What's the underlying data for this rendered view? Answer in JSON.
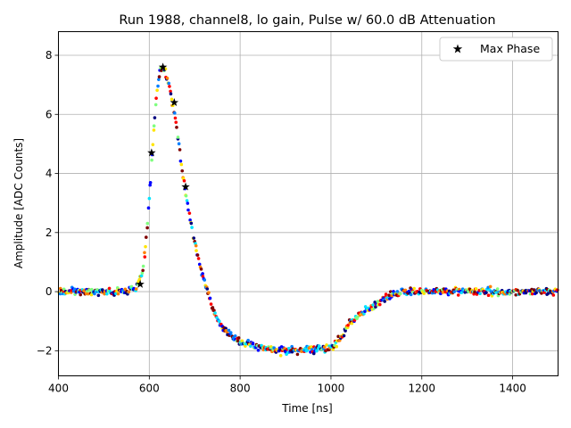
{
  "chart_data": {
    "type": "scatter",
    "title": "Run 1988, channel8, lo gain, Pulse w/ 60.0 dB Attenuation",
    "xlabel": "Time [ns]",
    "ylabel": "Amplitude [ADC Counts]",
    "xlim": [
      400,
      1500
    ],
    "ylim": [
      -2.85,
      8.8
    ],
    "xticks": [
      400,
      600,
      800,
      1000,
      1200,
      1400
    ],
    "yticks": [
      -2,
      0,
      2,
      4,
      6,
      8
    ],
    "xtick_labels": [
      "400",
      "600",
      "800",
      "1000",
      "1200",
      "1400"
    ],
    "ytick_labels": [
      "−2",
      "0",
      "2",
      "4",
      "6",
      "8"
    ],
    "grid": true,
    "legend": {
      "position": "top-right",
      "entries": [
        "Max Phase"
      ]
    },
    "colormap": [
      "#00007f",
      "#0000ff",
      "#007fff",
      "#00e5ff",
      "#7fff7f",
      "#ffe500",
      "#ff7f00",
      "#ff0000",
      "#7f0000"
    ],
    "pulse_waveform": {
      "description": "Many overlaid phase-shifted samples of the pulse shape; colour encodes phase",
      "samples": [
        [
          400,
          0.0
        ],
        [
          540,
          0.0
        ],
        [
          570,
          0.1
        ],
        [
          585,
          0.6
        ],
        [
          595,
          2.0
        ],
        [
          605,
          4.3
        ],
        [
          615,
          6.5
        ],
        [
          625,
          7.6
        ],
        [
          635,
          7.5
        ],
        [
          645,
          6.9
        ],
        [
          660,
          5.6
        ],
        [
          675,
          3.8
        ],
        [
          690,
          2.4
        ],
        [
          705,
          1.3
        ],
        [
          720,
          0.4
        ],
        [
          740,
          -0.6
        ],
        [
          760,
          -1.2
        ],
        [
          780,
          -1.5
        ],
        [
          800,
          -1.7
        ],
        [
          850,
          -1.9
        ],
        [
          900,
          -2.0
        ],
        [
          950,
          -1.95
        ],
        [
          1000,
          -1.9
        ],
        [
          1020,
          -1.6
        ],
        [
          1040,
          -1.1
        ],
        [
          1060,
          -0.8
        ],
        [
          1080,
          -0.6
        ],
        [
          1100,
          -0.4
        ],
        [
          1130,
          -0.15
        ],
        [
          1160,
          0.0
        ],
        [
          1500,
          0.0
        ]
      ]
    },
    "series": [
      {
        "name": "Max Phase",
        "marker": "star",
        "points": [
          {
            "x": 580,
            "y": 0.25
          },
          {
            "x": 605,
            "y": 4.7
          },
          {
            "x": 630,
            "y": 7.6
          },
          {
            "x": 655,
            "y": 6.4
          },
          {
            "x": 680,
            "y": 3.55
          }
        ]
      }
    ]
  }
}
